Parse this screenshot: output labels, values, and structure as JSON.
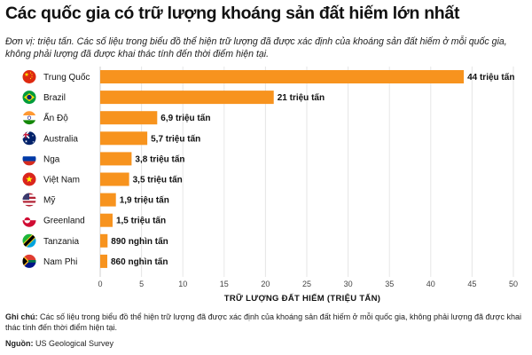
{
  "title": "Các quốc gia có trữ lượng khoáng sản đất hiếm lớn nhất",
  "subtitle": "Đơn vị: triệu tấn. Các số liệu trong biểu đồ thể hiện trữ lượng đã được xác định của khoáng sản đất hiếm ở mỗi quốc gia, không phải lượng đã được khai thác tính đến thời điểm hiện tại.",
  "notes": {
    "label": "Ghi chú:",
    "text": "Các số liệu trong biểu đồ thể hiện trữ lượng đã được xác định của khoáng sản đất hiếm ở mỗi quốc gia, không phải lượng đã được khai thác tính đến thời điểm hiện tại.",
    "source_label": "Nguồn:",
    "source_text": "US Geological Survey"
  },
  "colors": {
    "bar": "#F7931E",
    "text": "#111111",
    "grid": "#e6e6e6"
  },
  "chart_data": {
    "type": "bar",
    "orientation": "horizontal",
    "categories": [
      "Trung Quốc",
      "Brazil",
      "Ấn Độ",
      "Australia",
      "Nga",
      "Việt Nam",
      "Mỹ",
      "Greenland",
      "Tanzania",
      "Nam Phi"
    ],
    "flags": [
      "china-flag",
      "brazil-flag",
      "india-flag",
      "australia-flag",
      "russia-flag",
      "vietnam-flag",
      "usa-flag",
      "greenland-flag",
      "tanzania-flag",
      "south-africa-flag"
    ],
    "values": [
      44,
      21,
      6.9,
      5.7,
      3.8,
      3.5,
      1.9,
      1.5,
      0.89,
      0.86
    ],
    "data_labels": [
      "44 triệu tấn",
      "21 triệu tấn",
      "6,9 triệu tấn",
      "5,7 triệu tấn",
      "3,8 triệu tấn",
      "3,5 triệu tấn",
      "1,9 triệu tấn",
      "1,5 triệu tấn",
      "890 nghìn tấn",
      "860 nghìn tấn"
    ],
    "xlabel": "TRỮ LƯỢNG ĐẤT HIẾM (TRIỆU TẤN)",
    "xlim": [
      0,
      50
    ],
    "xticks": [
      0,
      5,
      10,
      15,
      20,
      25,
      30,
      35,
      40,
      45,
      50
    ],
    "grid": true
  }
}
